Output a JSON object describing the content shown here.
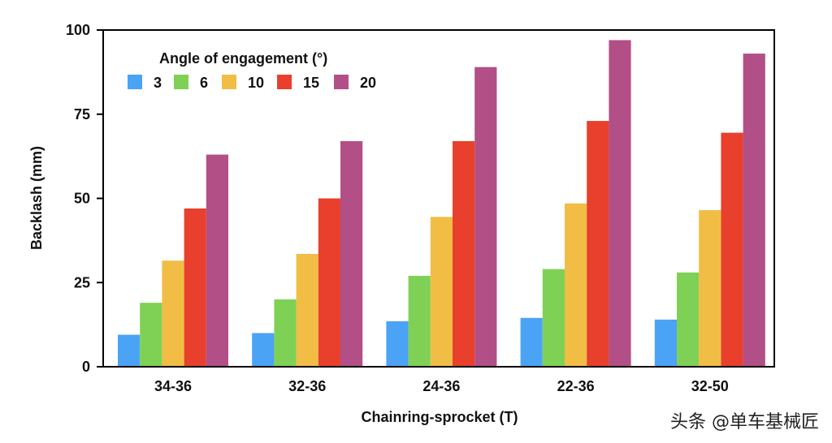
{
  "chart_data": {
    "type": "bar",
    "title": "",
    "xlabel": "Chainring-sprocket (T)",
    "ylabel": "Backlash (mm)",
    "ylim": [
      0,
      100
    ],
    "yticks": [
      0,
      25,
      50,
      75,
      100
    ],
    "categories": [
      "34-36",
      "32-36",
      "24-36",
      "22-36",
      "32-50"
    ],
    "legend_title": "Angle of engagement (°)",
    "legend_position": "top-left",
    "series": [
      {
        "name": "3",
        "color": "#4aa3f5",
        "values": [
          9.5,
          10,
          13.5,
          14.5,
          14
        ]
      },
      {
        "name": "6",
        "color": "#7fd155",
        "values": [
          19,
          20,
          27,
          29,
          28
        ]
      },
      {
        "name": "10",
        "color": "#f1bd45",
        "values": [
          31.5,
          33.5,
          44.5,
          48.5,
          46.5
        ]
      },
      {
        "name": "15",
        "color": "#e8402c",
        "values": [
          47,
          50,
          67,
          73,
          69.5
        ]
      },
      {
        "name": "20",
        "color": "#b24f86",
        "values": [
          63,
          67,
          89,
          97,
          93
        ]
      }
    ]
  },
  "watermark": "头条 @单车基械匠"
}
